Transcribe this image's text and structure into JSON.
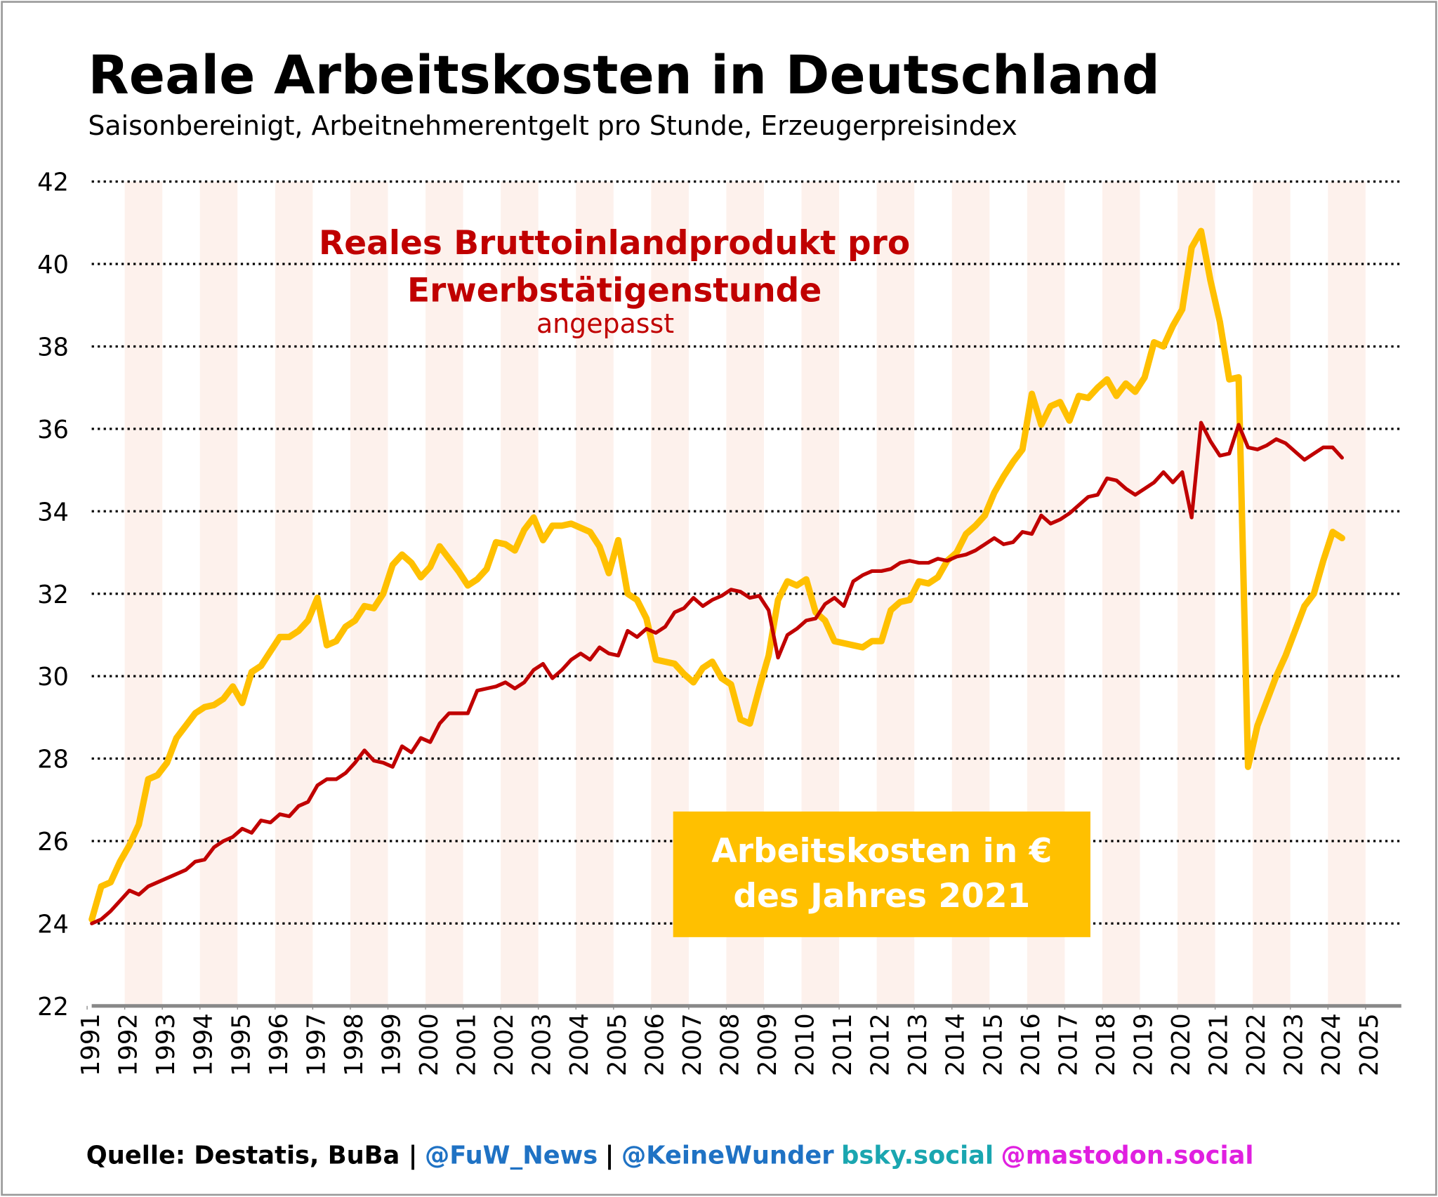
{
  "chart_data": {
    "type": "line",
    "title": "Reale Arbeitskosten in Deutschland",
    "subtitle": "Saisonbereinigt, Arbeitnehmerentgelt pro Stunde, Erzeugerpreisindex",
    "x": [
      1991.125,
      1991.375,
      1991.625,
      1991.875,
      1992.125,
      1992.375,
      1992.625,
      1992.875,
      1993.125,
      1993.375,
      1993.625,
      1993.875,
      1994.125,
      1994.375,
      1994.625,
      1994.875,
      1995.125,
      1995.375,
      1995.625,
      1995.875,
      1996.125,
      1996.375,
      1996.625,
      1996.875,
      1997.125,
      1997.375,
      1997.625,
      1997.875,
      1998.125,
      1998.375,
      1998.625,
      1998.875,
      1999.125,
      1999.375,
      1999.625,
      1999.875,
      2000.125,
      2000.375,
      2000.625,
      2000.875,
      2001.125,
      2001.375,
      2001.625,
      2001.875,
      2002.125,
      2002.375,
      2002.625,
      2002.875,
      2003.125,
      2003.375,
      2003.625,
      2003.875,
      2004.125,
      2004.375,
      2004.625,
      2004.875,
      2005.125,
      2005.375,
      2005.625,
      2005.875,
      2006.125,
      2006.375,
      2006.625,
      2006.875,
      2007.125,
      2007.375,
      2007.625,
      2007.875,
      2008.125,
      2008.375,
      2008.625,
      2008.875,
      2009.125,
      2009.375,
      2009.625,
      2009.875,
      2010.125,
      2010.375,
      2010.625,
      2010.875,
      2011.125,
      2011.375,
      2011.625,
      2011.875,
      2012.125,
      2012.375,
      2012.625,
      2012.875,
      2013.125,
      2013.375,
      2013.625,
      2013.875,
      2014.125,
      2014.375,
      2014.625,
      2014.875,
      2015.125,
      2015.375,
      2015.625,
      2015.875,
      2016.125,
      2016.375,
      2016.625,
      2016.875,
      2017.125,
      2017.375,
      2017.625,
      2017.875,
      2018.125,
      2018.375,
      2018.625,
      2018.875,
      2019.125,
      2019.375,
      2019.625,
      2019.875,
      2020.125,
      2020.375,
      2020.625,
      2020.875,
      2021.125,
      2021.375,
      2021.625,
      2021.875,
      2022.125,
      2022.375,
      2022.625,
      2022.875,
      2023.125,
      2023.375,
      2023.625,
      2023.875,
      2024.125,
      2024.375
    ],
    "series": [
      {
        "name": "Arbeitskosten in € des Jahres 2021",
        "color": "#ffc000",
        "width": 7,
        "values": [
          24.1,
          24.9,
          25.0,
          25.5,
          25.9,
          26.4,
          27.5,
          27.6,
          27.9,
          28.5,
          28.8,
          29.1,
          29.25,
          29.3,
          29.45,
          29.75,
          29.35,
          30.1,
          30.25,
          30.6,
          30.95,
          30.95,
          31.1,
          31.35,
          31.9,
          30.75,
          30.85,
          31.2,
          31.35,
          31.7,
          31.65,
          32.0,
          32.7,
          32.95,
          32.75,
          32.4,
          32.65,
          33.15,
          32.85,
          32.55,
          32.2,
          32.35,
          32.6,
          33.25,
          33.2,
          33.05,
          33.55,
          33.85,
          33.3,
          33.65,
          33.65,
          33.7,
          33.6,
          33.5,
          33.15,
          32.5,
          33.3,
          32.0,
          31.85,
          31.4,
          30.4,
          30.35,
          30.3,
          30.05,
          29.85,
          30.2,
          30.35,
          29.95,
          29.8,
          28.95,
          28.85,
          29.7,
          30.5,
          31.85,
          32.3,
          32.2,
          32.35,
          31.55,
          31.35,
          30.85,
          30.8,
          30.75,
          30.7,
          30.85,
          30.85,
          31.6,
          31.8,
          31.85,
          32.3,
          32.25,
          32.4,
          32.8,
          33.0,
          33.45,
          33.65,
          33.9,
          34.45,
          34.85,
          35.2,
          35.5,
          36.85,
          36.1,
          36.55,
          36.65,
          36.2,
          36.8,
          36.75,
          37.0,
          37.2,
          36.8,
          37.1,
          36.9,
          37.25,
          38.1,
          38.0,
          38.5,
          38.9,
          40.4,
          40.8,
          39.6,
          38.6,
          37.2,
          37.25,
          27.8,
          28.8,
          29.4,
          30.0,
          30.5,
          31.1,
          31.7,
          32.0,
          32.8,
          33.5,
          33.35
        ]
      },
      {
        "name": "Reales Bruttoinlandprodukt pro Erwerbstätigenstunde",
        "note": "angepasst",
        "color": "#c00000",
        "width": 4,
        "values": [
          24.0,
          24.1,
          24.3,
          24.55,
          24.8,
          24.7,
          24.9,
          25.0,
          25.1,
          25.2,
          25.3,
          25.5,
          25.55,
          25.85,
          26.0,
          26.1,
          26.3,
          26.2,
          26.5,
          26.45,
          26.65,
          26.6,
          26.85,
          26.95,
          27.35,
          27.5,
          27.5,
          27.65,
          27.9,
          28.2,
          27.95,
          27.9,
          27.8,
          28.3,
          28.15,
          28.5,
          28.4,
          28.85,
          29.1,
          29.1,
          29.1,
          29.65,
          29.7,
          29.75,
          29.85,
          29.7,
          29.85,
          30.15,
          30.3,
          29.95,
          30.15,
          30.4,
          30.55,
          30.4,
          30.7,
          30.55,
          30.5,
          31.1,
          30.95,
          31.15,
          31.05,
          31.2,
          31.55,
          31.65,
          31.9,
          31.7,
          31.85,
          31.95,
          32.1,
          32.05,
          31.9,
          31.95,
          31.6,
          30.45,
          31.0,
          31.15,
          31.35,
          31.4,
          31.75,
          31.9,
          31.7,
          32.3,
          32.45,
          32.55,
          32.55,
          32.6,
          32.75,
          32.8,
          32.75,
          32.75,
          32.85,
          32.8,
          32.9,
          32.95,
          33.05,
          33.2,
          33.35,
          33.2,
          33.25,
          33.5,
          33.45,
          33.9,
          33.7,
          33.8,
          33.95,
          34.15,
          34.35,
          34.4,
          34.8,
          34.75,
          34.55,
          34.4,
          34.55,
          34.7,
          34.95,
          34.7,
          34.95,
          33.85,
          36.15,
          35.7,
          35.35,
          35.4,
          36.1,
          35.55,
          35.5,
          35.6,
          35.75,
          35.65,
          35.45,
          35.25,
          35.4,
          35.55,
          35.55,
          35.3
        ]
      }
    ],
    "xlim": [
      1991,
      2026
    ],
    "xticks": [
      1991,
      1992,
      1993,
      1994,
      1995,
      1996,
      1997,
      1998,
      1999,
      2000,
      2001,
      2002,
      2003,
      2004,
      2005,
      2006,
      2007,
      2008,
      2009,
      2010,
      2011,
      2012,
      2013,
      2014,
      2015,
      2016,
      2017,
      2018,
      2019,
      2020,
      2021,
      2022,
      2023,
      2024,
      2025
    ],
    "ylim": [
      22,
      42
    ],
    "yticks": [
      22,
      24,
      26,
      28,
      30,
      32,
      34,
      36,
      38,
      40,
      42
    ],
    "grid": true,
    "source": [
      {
        "text": "Quelle: Destatis, BuBa |",
        "color": "#000000"
      },
      {
        "text": "@FuW_News",
        "color": "#1f72c4"
      },
      {
        "text": "|",
        "color": "#000000"
      },
      {
        "text": "@KeineWunder",
        "color": "#1f72c4"
      },
      {
        "text": "bsky.social",
        "color": "#1aa6b0"
      },
      {
        "text": "@mastodon.social",
        "color": "#e020e0"
      }
    ]
  }
}
